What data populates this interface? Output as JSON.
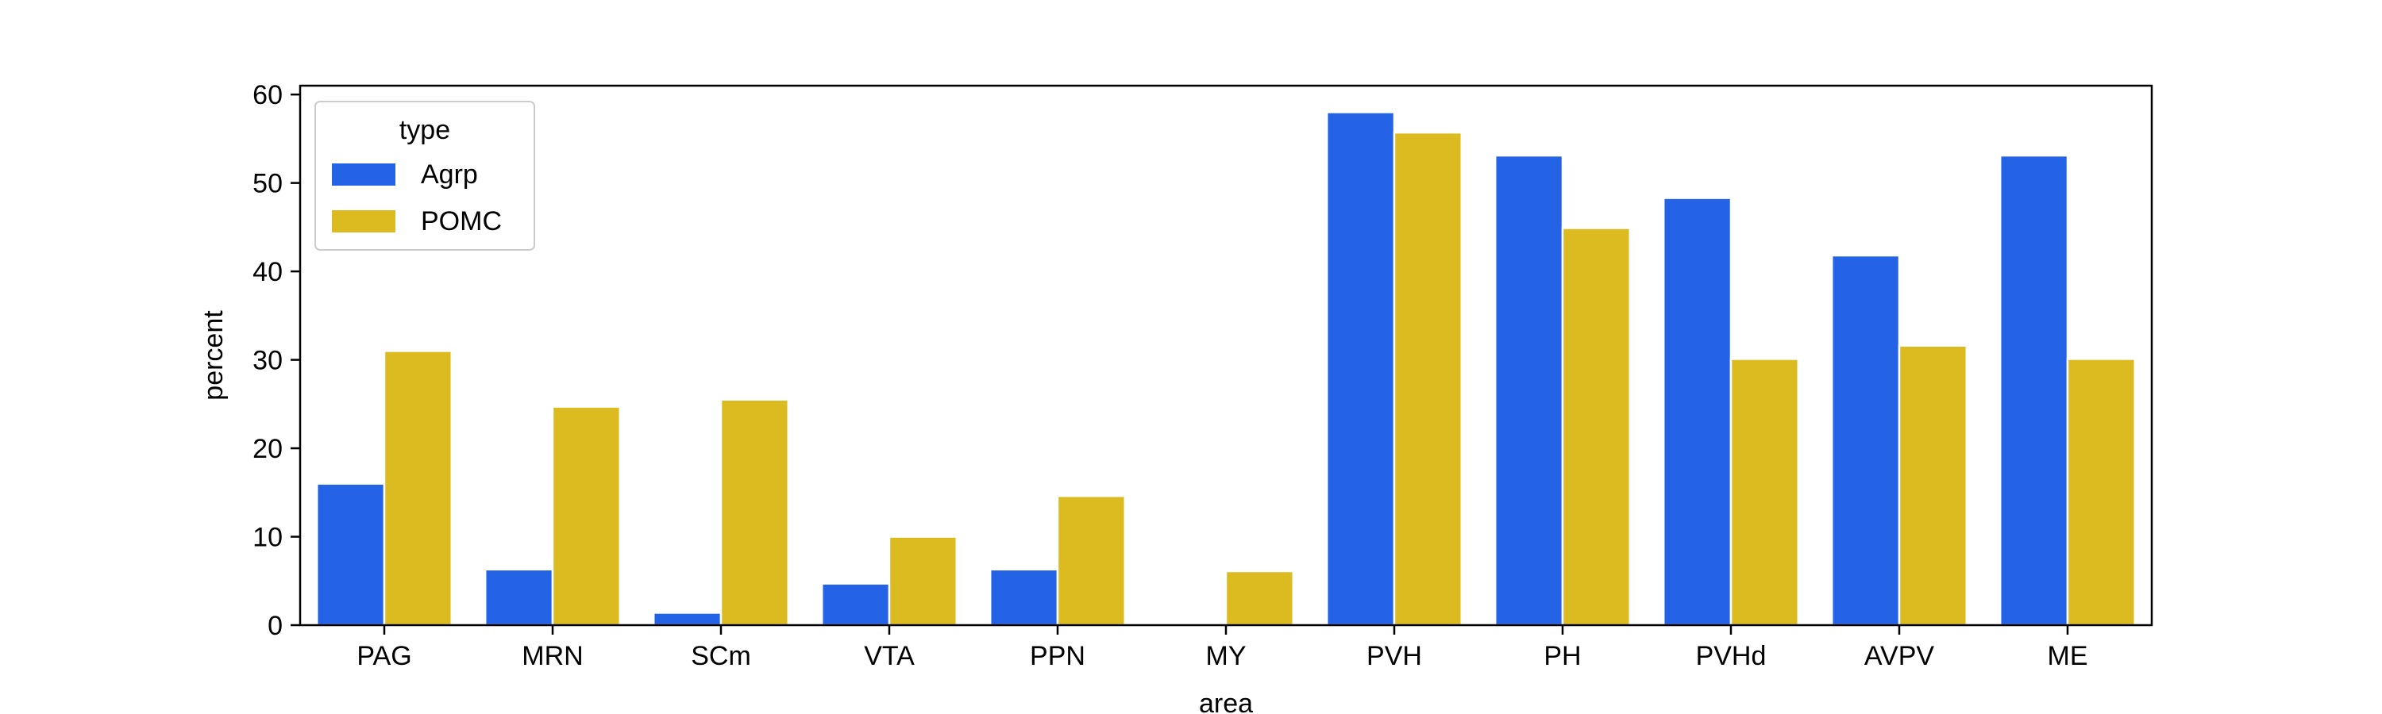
{
  "chart_data": {
    "type": "bar",
    "title": "",
    "xlabel": "area",
    "ylabel": "percent",
    "categories": [
      "PAG",
      "MRN",
      "SCm",
      "VTA",
      "PPN",
      "MY",
      "PVH",
      "PH",
      "PVHd",
      "AVPV",
      "ME"
    ],
    "series": [
      {
        "name": "Agrp",
        "color": "#2563e6",
        "values": [
          16.0,
          6.3,
          1.4,
          4.7,
          6.3,
          0,
          58.0,
          53.1,
          48.3,
          41.8,
          53.1
        ]
      },
      {
        "name": "POMC",
        "color": "#dbbb1f",
        "values": [
          31.0,
          24.7,
          25.5,
          10.0,
          14.6,
          6.1,
          55.7,
          44.9,
          30.1,
          31.6,
          30.1
        ]
      }
    ],
    "ylim": [
      0,
      61
    ],
    "yticks": [
      0,
      10,
      20,
      30,
      40,
      50,
      60
    ],
    "legend": {
      "title": "type",
      "placement": "top-left"
    },
    "grid": false
  }
}
